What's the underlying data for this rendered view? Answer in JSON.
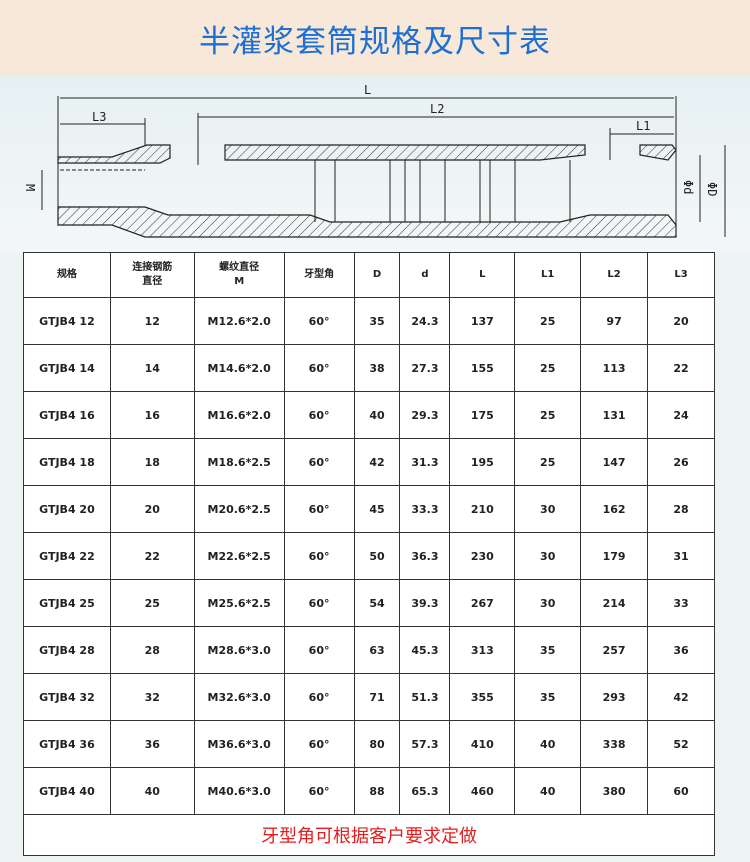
{
  "title": "半灌浆套筒规格及尺寸表",
  "diagram": {
    "labels": {
      "L": "L",
      "L2": "L2",
      "L3": "L3",
      "L1": "L1",
      "M": "M",
      "d": "Φd",
      "D": "ΦD"
    }
  },
  "table": {
    "headers": [
      "规格",
      "连接钢筋\n直径",
      "螺纹直径\nM",
      "牙型角",
      "D",
      "d",
      "L",
      "L1",
      "L2",
      "L3"
    ],
    "rows": [
      [
        "GTJB4 12",
        "12",
        "M12.6*2.0",
        "60°",
        "35",
        "24.3",
        "137",
        "25",
        "97",
        "20"
      ],
      [
        "GTJB4 14",
        "14",
        "M14.6*2.0",
        "60°",
        "38",
        "27.3",
        "155",
        "25",
        "113",
        "22"
      ],
      [
        "GTJB4 16",
        "16",
        "M16.6*2.0",
        "60°",
        "40",
        "29.3",
        "175",
        "25",
        "131",
        "24"
      ],
      [
        "GTJB4 18",
        "18",
        "M18.6*2.5",
        "60°",
        "42",
        "31.3",
        "195",
        "25",
        "147",
        "26"
      ],
      [
        "GTJB4 20",
        "20",
        "M20.6*2.5",
        "60°",
        "45",
        "33.3",
        "210",
        "30",
        "162",
        "28"
      ],
      [
        "GTJB4 22",
        "22",
        "M22.6*2.5",
        "60°",
        "50",
        "36.3",
        "230",
        "30",
        "179",
        "31"
      ],
      [
        "GTJB4 25",
        "25",
        "M25.6*2.5",
        "60°",
        "54",
        "39.3",
        "267",
        "30",
        "214",
        "33"
      ],
      [
        "GTJB4 28",
        "28",
        "M28.6*3.0",
        "60°",
        "63",
        "45.3",
        "313",
        "35",
        "257",
        "36"
      ],
      [
        "GTJB4 32",
        "32",
        "M32.6*3.0",
        "60°",
        "71",
        "51.3",
        "355",
        "35",
        "293",
        "42"
      ],
      [
        "GTJB4 36",
        "36",
        "M36.6*3.0",
        "60°",
        "80",
        "57.3",
        "410",
        "40",
        "338",
        "52"
      ],
      [
        "GTJB4 40",
        "40",
        "M40.6*3.0",
        "60°",
        "88",
        "65.3",
        "460",
        "40",
        "380",
        "60"
      ]
    ],
    "footer": "牙型角可根据客户要求定做"
  }
}
